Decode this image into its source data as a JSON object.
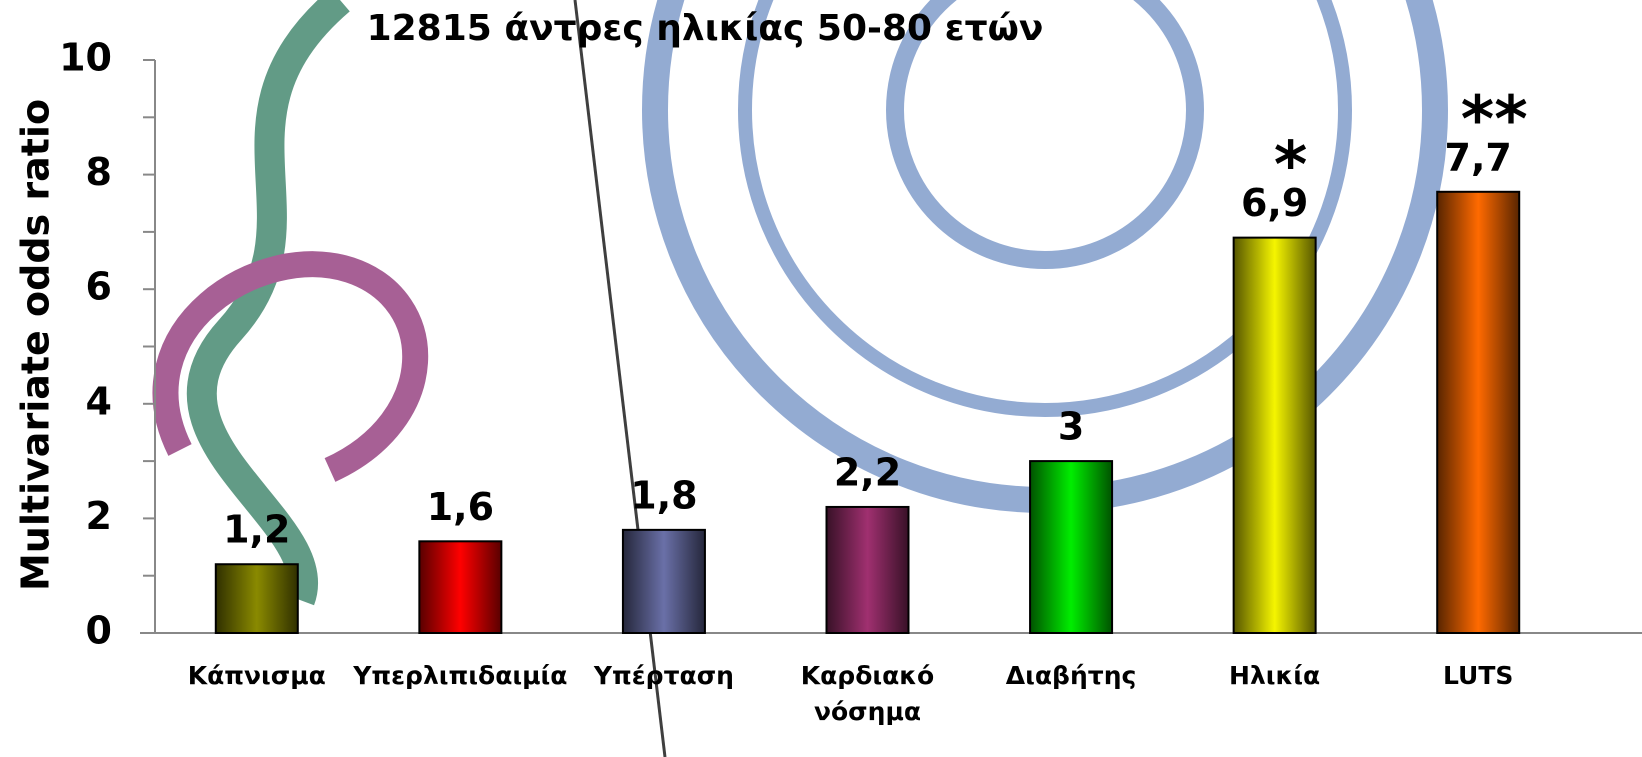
{
  "chart_data": {
    "type": "bar",
    "title": "12815 άντρες ηλικίας 50-80 ετών",
    "y_label": "Multivariate odds ratio",
    "categories": [
      "Κάπνισμα",
      "Υπερλιπιδαιμία",
      "Υπέρταση",
      "Καρδιακό νόσημα",
      "Διαβήτης",
      "Ηλικία",
      "LUTS"
    ],
    "values": [
      1.2,
      1.6,
      1.8,
      2.2,
      3,
      6.9,
      7.7
    ],
    "value_labels": [
      "1,2",
      "1,6",
      "1,8",
      "2,2",
      "3",
      "6,9",
      "7,7"
    ],
    "value_annotations": [
      null,
      null,
      null,
      null,
      null,
      "*",
      "**"
    ],
    "colors": [
      "#8a8a00",
      "#ff0000",
      "#6a70a8",
      "#a03070",
      "#00ee00",
      "#f5f500",
      "#ff6a00"
    ],
    "ylim": [
      0,
      10
    ],
    "yticks": [
      0,
      2,
      4,
      6,
      8,
      10
    ],
    "yminorticks": [
      1,
      3,
      5,
      7,
      9
    ],
    "grid": false
  }
}
